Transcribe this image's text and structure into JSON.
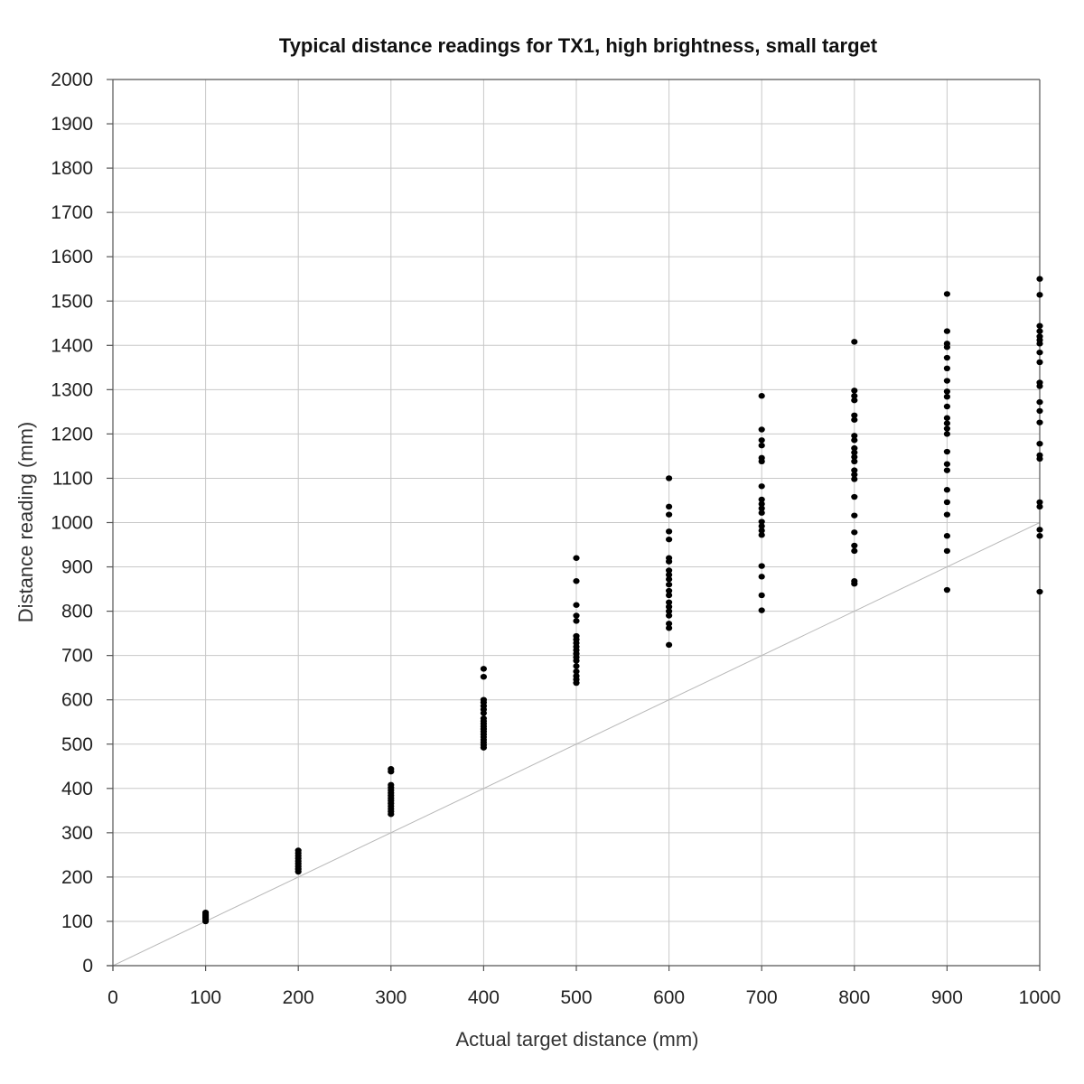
{
  "chart_data": {
    "type": "scatter",
    "title": "Typical distance readings for TX1, high brightness, small target",
    "xlabel": "Actual target distance (mm)",
    "ylabel": "Distance reading (mm)",
    "xlim": [
      0,
      1000
    ],
    "ylim": [
      0,
      2000
    ],
    "x_ticks": [
      0,
      100,
      200,
      300,
      400,
      500,
      600,
      700,
      800,
      900,
      1000
    ],
    "y_ticks": [
      0,
      100,
      200,
      300,
      400,
      500,
      600,
      700,
      800,
      900,
      1000,
      1100,
      1200,
      1300,
      1400,
      1500,
      1600,
      1700,
      1800,
      1900,
      2000
    ],
    "grid": true,
    "legend": "none",
    "reference_line": {
      "from": [
        0,
        0
      ],
      "to": [
        1000,
        1000
      ]
    },
    "colors": {
      "points": "#000000",
      "grid": "#c8c8c8",
      "reference_line": "#b8b8b8",
      "axis": "#555555"
    },
    "series": [
      {
        "x": 100,
        "values": [
          100,
          104,
          108,
          112,
          116,
          120
        ]
      },
      {
        "x": 200,
        "values": [
          212,
          218,
          224,
          230,
          236,
          242,
          248,
          254,
          260
        ]
      },
      {
        "x": 300,
        "values": [
          342,
          348,
          354,
          360,
          366,
          372,
          378,
          384,
          390,
          396,
          402,
          408,
          438,
          444
        ]
      },
      {
        "x": 400,
        "values": [
          492,
          498,
          504,
          510,
          516,
          522,
          528,
          534,
          540,
          546,
          552,
          558,
          570,
          578,
          586,
          594,
          600,
          652,
          670
        ]
      },
      {
        "x": 500,
        "values": [
          638,
          646,
          654,
          664,
          676,
          688,
          696,
          704,
          712,
          720,
          728,
          736,
          744,
          778,
          790,
          814,
          868,
          920
        ]
      },
      {
        "x": 600,
        "values": [
          724,
          762,
          772,
          790,
          800,
          810,
          820,
          836,
          846,
          860,
          872,
          882,
          892,
          912,
          920,
          962,
          980,
          1018,
          1036,
          1100
        ]
      },
      {
        "x": 700,
        "values": [
          802,
          836,
          878,
          902,
          972,
          982,
          992,
          1002,
          1022,
          1032,
          1042,
          1052,
          1082,
          1138,
          1146,
          1174,
          1186,
          1210,
          1286
        ]
      },
      {
        "x": 800,
        "values": [
          862,
          868,
          936,
          948,
          978,
          1016,
          1058,
          1098,
          1108,
          1118,
          1138,
          1148,
          1158,
          1168,
          1186,
          1196,
          1232,
          1242,
          1276,
          1286,
          1298,
          1408
        ]
      },
      {
        "x": 900,
        "values": [
          848,
          936,
          970,
          1018,
          1046,
          1074,
          1118,
          1132,
          1160,
          1200,
          1212,
          1224,
          1236,
          1262,
          1284,
          1296,
          1320,
          1348,
          1372,
          1396,
          1404,
          1432,
          1516
        ]
      },
      {
        "x": 1000,
        "values": [
          844,
          970,
          984,
          1036,
          1046,
          1144,
          1152,
          1178,
          1226,
          1252,
          1272,
          1308,
          1316,
          1362,
          1384,
          1404,
          1412,
          1420,
          1432,
          1444,
          1514,
          1550
        ]
      }
    ]
  }
}
